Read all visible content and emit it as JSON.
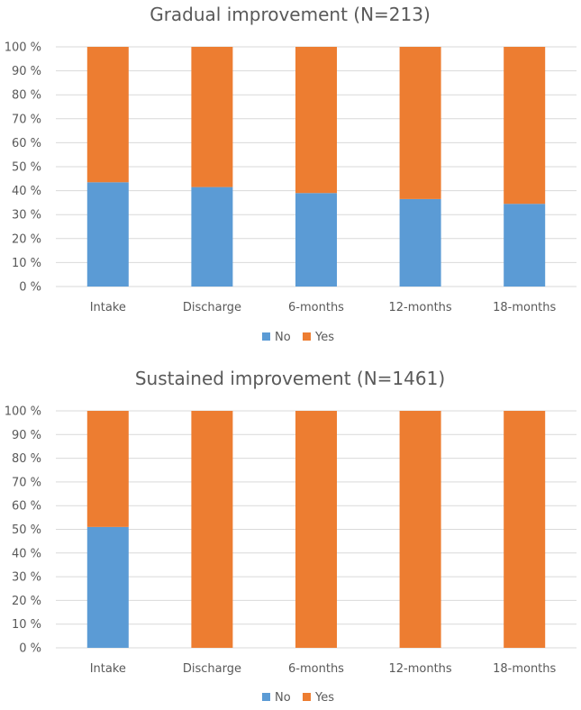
{
  "colors": {
    "no": "#5B9BD5",
    "yes": "#ED7D31",
    "grid": "#D9D9D9",
    "text": "#595959"
  },
  "chart_data": [
    {
      "type": "bar",
      "stacked": true,
      "percent": true,
      "title": "Gradual improvement (N=213)",
      "categories": [
        "Intake",
        "Discharge",
        "6-months",
        "12-months",
        "18-months"
      ],
      "series": [
        {
          "name": "No",
          "values": [
            43.5,
            41.5,
            39,
            36.5,
            34.5
          ]
        },
        {
          "name": "Yes",
          "values": [
            56.5,
            58.5,
            61,
            63.5,
            65.5
          ]
        }
      ],
      "ylim": [
        0,
        100
      ],
      "yticks": [
        "0 %",
        "10 %",
        "20 %",
        "30 %",
        "40 %",
        "50 %",
        "60 %",
        "70 %",
        "80 %",
        "90 %",
        "100 %"
      ],
      "grid": true,
      "legend": "bottom"
    },
    {
      "type": "bar",
      "stacked": true,
      "percent": true,
      "title": "Sustained improvement (N=1461)",
      "categories": [
        "Intake",
        "Discharge",
        "6-months",
        "12-months",
        "18-months"
      ],
      "series": [
        {
          "name": "No",
          "values": [
            51,
            0,
            0,
            0,
            0
          ]
        },
        {
          "name": "Yes",
          "values": [
            49,
            100,
            100,
            100,
            100
          ]
        }
      ],
      "ylim": [
        0,
        100
      ],
      "yticks": [
        "0 %",
        "10 %",
        "20 %",
        "30 %",
        "40 %",
        "50 %",
        "60 %",
        "70 %",
        "80 %",
        "90 %",
        "100 %"
      ],
      "grid": true,
      "legend": "bottom"
    }
  ]
}
